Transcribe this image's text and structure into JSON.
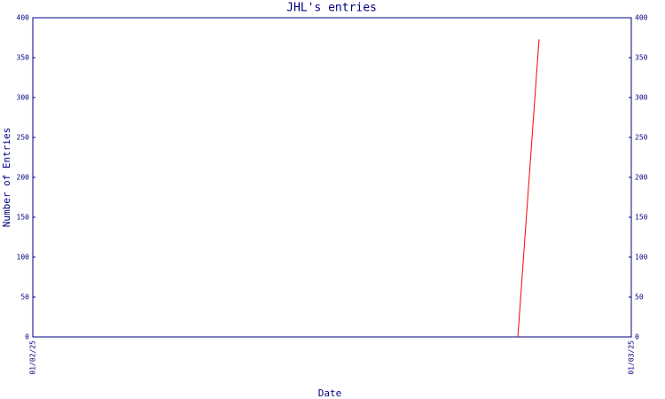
{
  "chart_data": {
    "type": "line",
    "title": "JHL's entries",
    "x_label": "Date",
    "y_label": "Number of Entries",
    "x": [
      "2025-01-02T19:27",
      "2025-01-02T20:18"
    ],
    "series": [
      {
        "name": "entries",
        "color": "#ff0000",
        "values": [
          0,
          373
        ]
      }
    ],
    "xlim": [
      "2025-01-02T00:00",
      "2025-01-03T00:00"
    ],
    "xticks": [
      {
        "value": "2025-01-02T00:00",
        "label": "01/02/25"
      },
      {
        "value": "2025-01-03T00:00",
        "label": "01/03/25"
      }
    ],
    "ylim": [
      0,
      400
    ],
    "yticks": [
      0,
      50,
      100,
      150,
      200,
      250,
      300,
      350,
      400
    ],
    "axis_color": "#000080",
    "grid": false
  }
}
